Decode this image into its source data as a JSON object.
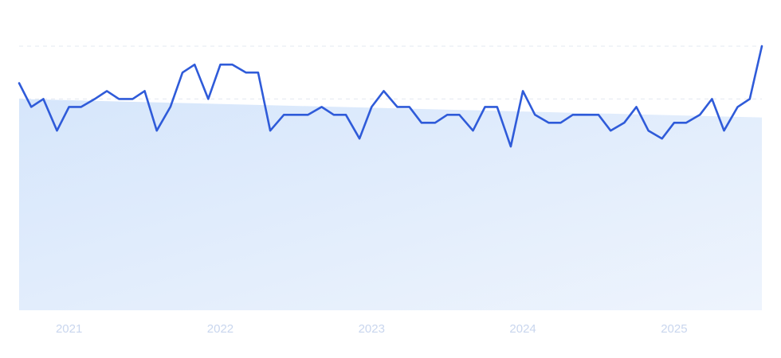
{
  "chart_data": {
    "type": "line",
    "title": "",
    "xlabel": "",
    "ylabel": "",
    "x_tick_labels": [
      "2021",
      "2022",
      "2023",
      "2024",
      "2025"
    ],
    "x_ticks": [
      2021.0,
      2022.0,
      2023.0,
      2024.0,
      2025.0
    ],
    "xlim": [
      2020.67,
      2025.58
    ],
    "ylim": [
      0,
      100
    ],
    "grid": "horizontal dashed",
    "legend": "none",
    "colors": {
      "line": "#2f5bd9",
      "fill_start": "#d6e6fb",
      "fill_end": "#eef4fd",
      "grid": "#e3e8f0",
      "tick": "#c9d6ee"
    },
    "series": [
      {
        "x": [
          2020.67,
          2020.75,
          2020.83,
          2020.92,
          2021.0,
          2021.08,
          2021.17,
          2021.25,
          2021.33,
          2021.42,
          2021.5,
          2021.58,
          2021.67,
          2021.75,
          2021.83,
          2021.92,
          2022.0,
          2022.08,
          2022.17,
          2022.25,
          2022.33,
          2022.42,
          2022.5,
          2022.58,
          2022.67,
          2022.75,
          2022.83,
          2022.92,
          2023.0,
          2023.08,
          2023.17,
          2023.25,
          2023.33,
          2023.42,
          2023.5,
          2023.58,
          2023.67,
          2023.75,
          2023.83,
          2023.92,
          2024.0,
          2024.08,
          2024.17,
          2024.25,
          2024.33,
          2024.42,
          2024.5,
          2024.58,
          2024.67,
          2024.75,
          2024.83,
          2024.92,
          2025.0,
          2025.08,
          2025.17,
          2025.25,
          2025.33,
          2025.42,
          2025.5,
          2025.58
        ],
        "values": [
          86,
          77,
          80,
          68,
          77,
          77,
          80,
          83,
          80,
          80,
          83,
          68,
          77,
          90,
          93,
          80,
          93,
          93,
          90,
          90,
          68,
          74,
          74,
          74,
          77,
          74,
          74,
          65,
          77,
          83,
          77,
          77,
          71,
          71,
          74,
          74,
          68,
          77,
          77,
          62,
          83,
          74,
          71,
          71,
          74,
          74,
          74,
          68,
          71,
          77,
          68,
          65,
          71,
          71,
          74,
          80,
          68,
          77,
          80,
          100
        ]
      }
    ],
    "trend": {
      "x": [
        2020.67,
        2025.58
      ],
      "values": [
        80,
        73
      ]
    }
  }
}
